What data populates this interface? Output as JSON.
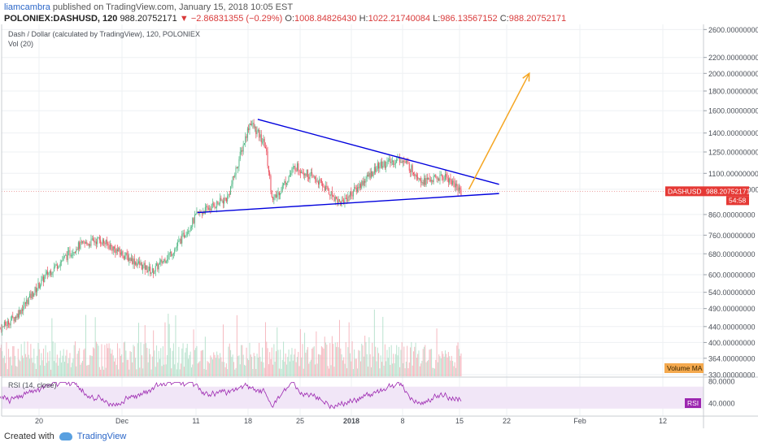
{
  "header": {
    "author": "liamcambra",
    "published": "published on TradingView.com, January 15, 2018 10:05 EST",
    "symbol": "POLONIEX:DASHUSD, 120",
    "last": "988.20752171",
    "change": "−2.86831355 (−0.29%)",
    "o_label": "O:",
    "o": "1008.84826430",
    "h_label": "H:",
    "h": "1022.21740084",
    "l_label": "L:",
    "l": "986.13567152",
    "c_label": "C:",
    "c": "988.20752171"
  },
  "legend": {
    "main": "Dash / Dollar (calculated by TradingView), 120, POLONIEX",
    "vol": "Vol (20)",
    "rsi": "RSI (14, close)"
  },
  "badges": {
    "symbol": "DASHUSD",
    "price": "988.20752171",
    "timer": "54:58",
    "volume_ma": "Volume MA",
    "rsi": "RSI"
  },
  "footer": {
    "created": "Created with",
    "brand": "TradingView"
  },
  "colors": {
    "up": "#53b987",
    "down": "#eb4d5c",
    "trend": "#0000dd",
    "arrow": "#f5a623",
    "rsi": "#9c27b0",
    "badge_red": "#e53935"
  },
  "chart_data": [
    {
      "type": "candlestick",
      "title": "Dash / Dollar (calculated by TradingView), 120, POLONIEX",
      "scale": "log",
      "ylim": [
        330,
        2600
      ],
      "y_ticks": [
        2600,
        2200,
        2000,
        1800,
        1600,
        1400,
        1250,
        1100,
        1000,
        860,
        760,
        680,
        600,
        540,
        490,
        440,
        400,
        364,
        330
      ],
      "x_ticks": [
        "20",
        "Dec",
        "11",
        "18",
        "25",
        "2018",
        "8",
        "15",
        "22",
        "Feb",
        "12"
      ],
      "price_path": {
        "x": [
          "2017-11-14",
          "2017-11-17",
          "2017-11-21",
          "2017-11-25",
          "2017-11-28",
          "2017-12-01",
          "2017-12-05",
          "2017-12-08",
          "2017-12-11",
          "2017-12-15",
          "2017-12-18",
          "2017-12-20",
          "2017-12-21",
          "2017-12-24",
          "2017-12-27",
          "2017-12-30",
          "2018-01-01",
          "2018-01-04",
          "2018-01-07",
          "2018-01-10",
          "2018-01-13",
          "2018-01-15"
        ],
        "close": [
          420,
          470,
          600,
          710,
          740,
          680,
          610,
          700,
          860,
          950,
          1500,
          1300,
          930,
          1150,
          1050,
          920,
          1000,
          1150,
          1200,
          1050,
          1080,
          988
        ]
      },
      "trendlines": [
        {
          "name": "upper",
          "from": [
            "2017-12-19",
            1520
          ],
          "to": [
            "2018-01-20",
            1030
          ]
        },
        {
          "name": "lower",
          "from": [
            "2017-12-11",
            870
          ],
          "to": [
            "2018-01-20",
            975
          ]
        }
      ],
      "arrow": {
        "from": [
          "2018-01-16",
          1000
        ],
        "to": [
          "2018-01-24",
          2000
        ]
      },
      "last_price": 988.20752171
    },
    {
      "type": "bar",
      "title": "Vol (20)",
      "legend": [
        "Volume MA"
      ]
    },
    {
      "type": "line",
      "title": "RSI (14, close)",
      "y_ticks": [
        80.0,
        40.0
      ],
      "band": [
        30,
        70
      ]
    }
  ]
}
